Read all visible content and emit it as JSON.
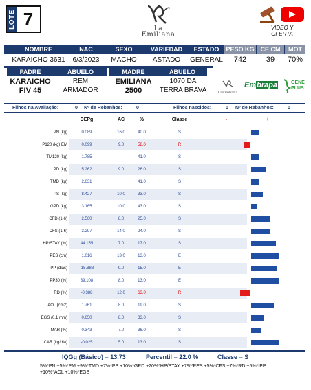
{
  "lote": {
    "label": "LOTE",
    "number": "7"
  },
  "logo": {
    "line1": "La",
    "line2": "Emiliana"
  },
  "video": {
    "line1": "VIDEO Y",
    "line2": "OFERTA"
  },
  "info_headers": [
    "NOMBRE",
    "NAC",
    "SEXO",
    "VARIEDAD",
    "ESTADO",
    "PESO KG",
    "CE CM",
    "MOT"
  ],
  "info_values": [
    "KARAICHO 3631",
    "6/3/2023",
    "MACHO",
    "ASTADO",
    "GENERAL",
    "742",
    "39",
    "70%"
  ],
  "pedigree_headers": [
    "PADRE",
    "ABUELO",
    "MADRE",
    "ABUELO"
  ],
  "pedigree": {
    "padre": [
      "KARAICHO",
      "FIV 45"
    ],
    "abuelo_p": [
      "REM",
      "ARMADOR"
    ],
    "madre": [
      "EMILIANA",
      "2500"
    ],
    "abuelo_m": [
      "1070 DA",
      "TERRA BRAVA"
    ]
  },
  "brands": {
    "emiliana": "LaEmiliana",
    "embrapa_a": "Em",
    "embrapa_b": "brapa",
    "gene_a": "GENE",
    "gene_b": "PLUS"
  },
  "stats": {
    "filhos_label": "Filhos na Avaliação:",
    "filhos_value": "0",
    "rebanhos1_label": "Nº de Rebanhos:",
    "rebanhos1_value": "0",
    "nascidos_label": "Filhos nascidos:",
    "nascidos_value": "0",
    "rebanhos2_label": "Nº de Rebanhos:",
    "rebanhos2_value": "0"
  },
  "table_headers": {
    "depg": "DEPg",
    "ac": "AC",
    "pct": "%",
    "classe": "Classe",
    "minus": "-",
    "plus": "+"
  },
  "colors": {
    "navy": "#1c3a6e",
    "bar_blue": "#1f4ea3",
    "bar_red": "#e31b1b"
  },
  "chart_data": {
    "type": "bar",
    "categories": [
      "PN (kg)",
      "P120 (kg) EM",
      "TM120 (kg)",
      "PD (kg)",
      "TMD (kg)",
      "PS (kg)",
      "GPD (kg)",
      "CFD (1-6)",
      "CFS (1-6)",
      "HP/STAY (%)",
      "PES (cm)",
      "IPP (dias)",
      "PP30 (%)",
      "RD (%)",
      "AOL (cm2)",
      "EGS (0,1 mm)",
      "MAR (%)",
      "CAR (kg/dia)"
    ],
    "rows": [
      {
        "trait": "PN (kg)",
        "depg": "0.089",
        "ac": "16.0",
        "pct": "40.0",
        "classe": "S",
        "bar": 0.12,
        "neg": false
      },
      {
        "trait": "P120 (kg) EM",
        "depg": "0.099",
        "ac": "9.0",
        "pct": "58.0",
        "classe": "R",
        "bar": 0.09,
        "neg": true
      },
      {
        "trait": "TM120 (kg)",
        "depg": "1.785",
        "ac": "",
        "pct": "41.0",
        "classe": "S",
        "bar": 0.11,
        "neg": false
      },
      {
        "trait": "PD (kg)",
        "depg": "5.262",
        "ac": "9.0",
        "pct": "26.0",
        "classe": "S",
        "bar": 0.22,
        "neg": false
      },
      {
        "trait": "TMD (kg)",
        "depg": "2.631",
        "ac": "",
        "pct": "41.0",
        "classe": "S",
        "bar": 0.11,
        "neg": false
      },
      {
        "trait": "PS (kg)",
        "depg": "8.427",
        "ac": "10.0",
        "pct": "33.0",
        "classe": "S",
        "bar": 0.17,
        "neg": false
      },
      {
        "trait": "GPD (kg)",
        "depg": "3.165",
        "ac": "10.0",
        "pct": "43.0",
        "classe": "S",
        "bar": 0.09,
        "neg": false
      },
      {
        "trait": "CFD (1-6)",
        "depg": "2.560",
        "ac": "8.0",
        "pct": "25.0",
        "classe": "S",
        "bar": 0.27,
        "neg": false
      },
      {
        "trait": "CFS (1-6)",
        "depg": "3.297",
        "ac": "14.0",
        "pct": "24.0",
        "classe": "S",
        "bar": 0.28,
        "neg": false
      },
      {
        "trait": "HP/STAY (%)",
        "depg": "44.155",
        "ac": "7.0",
        "pct": "17.0",
        "classe": "S",
        "bar": 0.36,
        "neg": false
      },
      {
        "trait": "PES (cm)",
        "depg": "1.016",
        "ac": "13.0",
        "pct": "13.0",
        "classe": "E",
        "bar": 0.41,
        "neg": false
      },
      {
        "trait": "IPP (dias)",
        "depg": "-15.888",
        "ac": "9.0",
        "pct": "15.0",
        "classe": "E",
        "bar": 0.38,
        "neg": false
      },
      {
        "trait": "PP30 (%)",
        "depg": "39.108",
        "ac": "8.0",
        "pct": "13.0",
        "classe": "E",
        "bar": 0.41,
        "neg": false
      },
      {
        "trait": "RD (%)",
        "depg": "-0.388",
        "ac": "12.0",
        "pct": "63.0",
        "classe": "R",
        "bar": 0.14,
        "neg": true
      },
      {
        "trait": "AOL (cm2)",
        "depg": "1.761",
        "ac": "8.0",
        "pct": "19.0",
        "classe": "S",
        "bar": 0.33,
        "neg": false
      },
      {
        "trait": "EGS (0,1 mm)",
        "depg": "0.650",
        "ac": "8.0",
        "pct": "33.0",
        "classe": "S",
        "bar": 0.18,
        "neg": false
      },
      {
        "trait": "MAR (%)",
        "depg": "0.343",
        "ac": "7.0",
        "pct": "36.0",
        "classe": "S",
        "bar": 0.15,
        "neg": false
      },
      {
        "trait": "CAR (kg/dia)",
        "depg": "-0.025",
        "ac": "5.0",
        "pct": "13.0",
        "classe": "S",
        "bar": 0.4,
        "neg": false
      }
    ]
  },
  "footer": {
    "iqgg": "IQGg (Básico) = 13.73",
    "percentil": "Percentil = 22.0 %",
    "classe": "Classe = S",
    "formula_1": "5%*PN +5%*PM +9%*TMD +7%*PS +10%*GPD +20%*HP/STAY +7%*PES +5%*CFS +7%*RD +5%*IPP",
    "formula_2": "+10%*AOL +10%*EGS"
  }
}
